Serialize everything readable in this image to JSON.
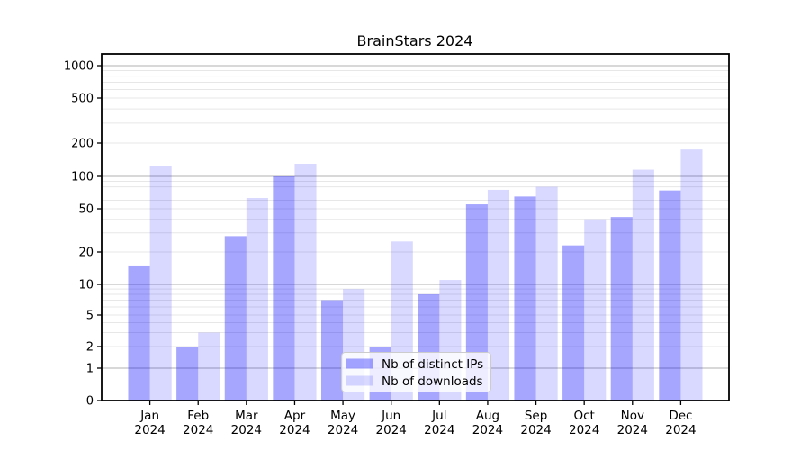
{
  "chart_data": {
    "type": "bar",
    "title": "BrainStars 2024",
    "categories": [
      "Jan",
      "Feb",
      "Mar",
      "Apr",
      "May",
      "Jun",
      "Jul",
      "Aug",
      "Sep",
      "Oct",
      "Nov",
      "Dec"
    ],
    "category_year": "2024",
    "series": [
      {
        "name": "Nb of distinct IPs",
        "color": "#0000ff",
        "opacity": 0.35,
        "values": [
          15,
          2,
          28,
          100,
          7,
          2,
          8,
          55,
          65,
          23,
          42,
          74
        ]
      },
      {
        "name": "Nb of downloads",
        "color": "#0000ff",
        "opacity": 0.15,
        "values": [
          125,
          3,
          63,
          130,
          9,
          25,
          11,
          75,
          80,
          40,
          115,
          175
        ]
      }
    ],
    "yscale": "symlog",
    "yticks": [
      0,
      1,
      2,
      5,
      10,
      20,
      50,
      100,
      200,
      500,
      1000
    ],
    "ylim": [
      0,
      1300
    ],
    "grid": true,
    "legend_position": "lower center",
    "axis_color": "#000000",
    "major_grid_color": "#b0b0b0",
    "minor_grid_color": "#e7e7e7"
  }
}
